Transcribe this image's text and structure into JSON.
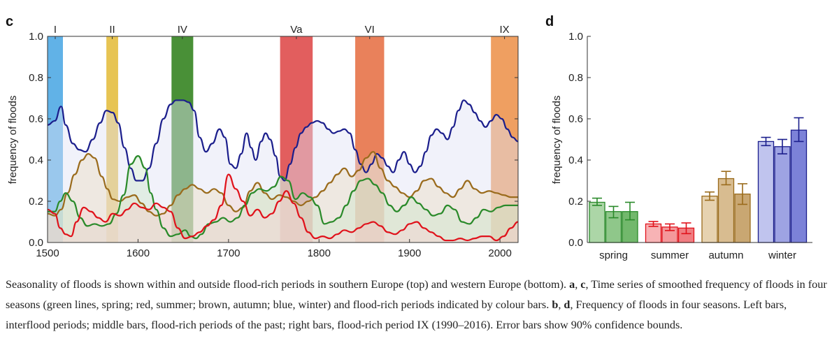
{
  "chart_data": [
    {
      "panel": "c",
      "type": "line",
      "ylabel": "frequency of floods",
      "xlim": [
        1500,
        2020
      ],
      "ylim": [
        0,
        1
      ],
      "xticks": [
        1500,
        1600,
        1700,
        1800,
        1900,
        2000
      ],
      "yticks": [
        "0.0",
        "0.2",
        "0.4",
        "0.6",
        "0.8",
        "1.0"
      ],
      "periods": [
        {
          "label": "I",
          "start": 1500,
          "end": 1517,
          "color": "#58aee6"
        },
        {
          "label": "II",
          "start": 1565,
          "end": 1578,
          "color": "#e6c14a"
        },
        {
          "label": "IV",
          "start": 1637,
          "end": 1661,
          "color": "#3f8a2c"
        },
        {
          "label": "Va",
          "start": 1757,
          "end": 1793,
          "color": "#e05555"
        },
        {
          "label": "VI",
          "start": 1840,
          "end": 1872,
          "color": "#e87a52"
        },
        {
          "label": "IX",
          "start": 1990,
          "end": 2020,
          "color": "#ee9a58"
        }
      ],
      "series": [
        {
          "color": "#1b1e8c",
          "fill": "#dfe2f5",
          "x": [
            1500,
            1508,
            1515,
            1520,
            1528,
            1535,
            1542,
            1550,
            1558,
            1565,
            1572,
            1578,
            1585,
            1592,
            1598,
            1605,
            1612,
            1620,
            1628,
            1636,
            1642,
            1650,
            1656,
            1662,
            1668,
            1675,
            1682,
            1690,
            1696,
            1702,
            1708,
            1714,
            1720,
            1725,
            1730,
            1736,
            1741,
            1746,
            1752,
            1757,
            1762,
            1768,
            1774,
            1780,
            1786,
            1792,
            1798,
            1804,
            1810,
            1816,
            1822,
            1828,
            1834,
            1840,
            1846,
            1852,
            1858,
            1864,
            1870,
            1876,
            1882,
            1888,
            1894,
            1900,
            1906,
            1912,
            1918,
            1924,
            1930,
            1936,
            1942,
            1948,
            1954,
            1960,
            1966,
            1972,
            1978,
            1984,
            1990,
            1996,
            2002,
            2008,
            2014,
            2020
          ],
          "values": [
            0.57,
            0.59,
            0.66,
            0.57,
            0.48,
            0.45,
            0.44,
            0.5,
            0.58,
            0.64,
            0.63,
            0.58,
            0.46,
            0.36,
            0.3,
            0.3,
            0.36,
            0.48,
            0.6,
            0.67,
            0.69,
            0.69,
            0.68,
            0.64,
            0.51,
            0.44,
            0.48,
            0.55,
            0.51,
            0.38,
            0.36,
            0.43,
            0.53,
            0.46,
            0.4,
            0.49,
            0.53,
            0.5,
            0.42,
            0.32,
            0.3,
            0.38,
            0.46,
            0.53,
            0.56,
            0.58,
            0.59,
            0.58,
            0.55,
            0.53,
            0.54,
            0.55,
            0.53,
            0.45,
            0.38,
            0.34,
            0.38,
            0.43,
            0.41,
            0.37,
            0.34,
            0.4,
            0.44,
            0.38,
            0.34,
            0.37,
            0.44,
            0.52,
            0.55,
            0.53,
            0.5,
            0.56,
            0.64,
            0.69,
            0.67,
            0.63,
            0.59,
            0.56,
            0.59,
            0.62,
            0.6,
            0.55,
            0.51,
            0.49
          ]
        },
        {
          "color": "#9a6b1c",
          "fill": "#ecdcc4",
          "x": [
            1500,
            1508,
            1515,
            1522,
            1530,
            1538,
            1545,
            1552,
            1560,
            1566,
            1572,
            1580,
            1588,
            1596,
            1604,
            1612,
            1620,
            1628,
            1636,
            1644,
            1652,
            1660,
            1668,
            1676,
            1684,
            1692,
            1700,
            1708,
            1716,
            1724,
            1732,
            1740,
            1748,
            1756,
            1764,
            1772,
            1780,
            1788,
            1796,
            1804,
            1812,
            1820,
            1828,
            1836,
            1844,
            1852,
            1860,
            1868,
            1876,
            1884,
            1892,
            1900,
            1908,
            1916,
            1924,
            1932,
            1940,
            1948,
            1956,
            1964,
            1972,
            1980,
            1988,
            1996,
            2004,
            2012,
            2020
          ],
          "values": [
            0.14,
            0.13,
            0.16,
            0.24,
            0.33,
            0.4,
            0.43,
            0.41,
            0.32,
            0.26,
            0.21,
            0.2,
            0.22,
            0.23,
            0.19,
            0.15,
            0.13,
            0.14,
            0.18,
            0.23,
            0.26,
            0.28,
            0.26,
            0.24,
            0.26,
            0.24,
            0.18,
            0.15,
            0.17,
            0.25,
            0.29,
            0.24,
            0.21,
            0.23,
            0.22,
            0.2,
            0.18,
            0.2,
            0.22,
            0.25,
            0.29,
            0.33,
            0.36,
            0.32,
            0.35,
            0.41,
            0.44,
            0.36,
            0.3,
            0.27,
            0.24,
            0.22,
            0.25,
            0.3,
            0.31,
            0.27,
            0.24,
            0.22,
            0.26,
            0.3,
            0.26,
            0.24,
            0.25,
            0.24,
            0.23,
            0.22,
            0.22
          ]
        },
        {
          "color": "#2a8a2a",
          "fill": "#cfe6cc",
          "x": [
            1500,
            1508,
            1514,
            1520,
            1528,
            1536,
            1544,
            1552,
            1560,
            1568,
            1576,
            1584,
            1592,
            1600,
            1608,
            1614,
            1620,
            1628,
            1636,
            1644,
            1652,
            1658,
            1664,
            1670,
            1678,
            1686,
            1694,
            1702,
            1710,
            1718,
            1726,
            1734,
            1742,
            1750,
            1758,
            1766,
            1774,
            1782,
            1790,
            1798,
            1806,
            1814,
            1822,
            1830,
            1838,
            1846,
            1854,
            1862,
            1870,
            1878,
            1886,
            1894,
            1902,
            1910,
            1918,
            1926,
            1934,
            1942,
            1950,
            1958,
            1966,
            1974,
            1982,
            1990,
            1998,
            2006,
            2014,
            2020
          ],
          "values": [
            0.15,
            0.15,
            0.2,
            0.24,
            0.2,
            0.12,
            0.08,
            0.09,
            0.08,
            0.09,
            0.14,
            0.23,
            0.38,
            0.42,
            0.36,
            0.24,
            0.16,
            0.07,
            0.03,
            0.04,
            0.06,
            0.03,
            0.02,
            0.04,
            0.09,
            0.1,
            0.12,
            0.1,
            0.12,
            0.18,
            0.24,
            0.26,
            0.25,
            0.27,
            0.32,
            0.3,
            0.21,
            0.24,
            0.22,
            0.18,
            0.09,
            0.1,
            0.12,
            0.18,
            0.25,
            0.3,
            0.31,
            0.28,
            0.24,
            0.18,
            0.15,
            0.18,
            0.22,
            0.19,
            0.16,
            0.13,
            0.14,
            0.18,
            0.16,
            0.1,
            0.09,
            0.12,
            0.16,
            0.15,
            0.17,
            0.18,
            0.18,
            0.18
          ]
        },
        {
          "color": "#e0121b",
          "fill": "#f5d2d2",
          "x": [
            1500,
            1508,
            1514,
            1520,
            1526,
            1532,
            1540,
            1548,
            1556,
            1564,
            1572,
            1580,
            1588,
            1596,
            1604,
            1612,
            1620,
            1628,
            1636,
            1644,
            1652,
            1660,
            1668,
            1676,
            1684,
            1692,
            1700,
            1708,
            1716,
            1724,
            1732,
            1740,
            1748,
            1756,
            1764,
            1772,
            1780,
            1788,
            1796,
            1804,
            1812,
            1820,
            1828,
            1836,
            1844,
            1852,
            1860,
            1868,
            1876,
            1884,
            1892,
            1900,
            1908,
            1916,
            1924,
            1932,
            1940,
            1948,
            1956,
            1964,
            1972,
            1980,
            1988,
            1996,
            2004,
            2012,
            2020
          ],
          "values": [
            0.16,
            0.14,
            0.07,
            0.04,
            0.03,
            0.1,
            0.17,
            0.15,
            0.12,
            0.1,
            0.14,
            0.13,
            0.16,
            0.19,
            0.17,
            0.16,
            0.19,
            0.17,
            0.15,
            0.07,
            0.02,
            0.03,
            0.05,
            0.08,
            0.11,
            0.18,
            0.33,
            0.26,
            0.2,
            0.13,
            0.16,
            0.12,
            0.14,
            0.2,
            0.25,
            0.19,
            0.12,
            0.05,
            0.02,
            0.03,
            0.02,
            0.04,
            0.06,
            0.05,
            0.07,
            0.09,
            0.1,
            0.08,
            0.05,
            0.04,
            0.06,
            0.09,
            0.1,
            0.07,
            0.05,
            0.03,
            0.01,
            0.01,
            0.02,
            0.01,
            0.02,
            0.03,
            0.03,
            0.01,
            0.03,
            0.07,
            0.1
          ]
        }
      ],
      "period_label_rows": "top"
    },
    {
      "panel": "d",
      "type": "bar",
      "ylabel": "frequency of floods",
      "categories": [
        "spring",
        "summer",
        "autumn",
        "winter"
      ],
      "ylim": [
        0,
        1
      ],
      "yticks": [
        "0.0",
        "0.2",
        "0.4",
        "0.6",
        "0.8",
        "1.0"
      ],
      "error_bars": true,
      "groups": [
        {
          "color": "#2a8a2a",
          "fills": [
            "#acd6a7",
            "#8fc78a",
            "#72b86c"
          ],
          "values": [
            0.195,
            0.15,
            0.15
          ],
          "err_low": [
            0.18,
            0.12,
            0.11
          ],
          "err_high": [
            0.215,
            0.175,
            0.195
          ]
        },
        {
          "color": "#e0121b",
          "fills": [
            "#f7b3b5",
            "#f4989b",
            "#f07d81"
          ],
          "values": [
            0.09,
            0.075,
            0.07
          ],
          "err_low": [
            0.078,
            0.058,
            0.043
          ],
          "err_high": [
            0.102,
            0.09,
            0.095
          ]
        },
        {
          "color": "#9a6b1c",
          "fills": [
            "#e6d2b0",
            "#d8bc90",
            "#c9a772"
          ],
          "values": [
            0.225,
            0.31,
            0.235
          ],
          "err_low": [
            0.205,
            0.28,
            0.185
          ],
          "err_high": [
            0.245,
            0.345,
            0.285
          ]
        },
        {
          "color": "#1b1e8c",
          "fills": [
            "#c0c4ee",
            "#9ea3e3",
            "#7c82d8"
          ],
          "values": [
            0.49,
            0.465,
            0.545
          ],
          "err_low": [
            0.47,
            0.43,
            0.49
          ],
          "err_high": [
            0.51,
            0.5,
            0.605
          ]
        }
      ]
    }
  ],
  "caption": {
    "p1": "Seasonality of floods is shown within and outside flood-rich periods in southern Europe (top) and western Europe (bottom). ",
    "b1": "a",
    "s1": ", ",
    "b2": "c",
    "p2": ", Time series of smoothed frequency of floods in four seasons (green lines, spring; red, summer; brown, autumn; blue, winter) and flood-rich periods indicated by colour bars. ",
    "b3": "b",
    "s2": ", ",
    "b4": "d",
    "p3": ", Frequency of floods in four seasons. Left bars, interflood periods; middle bars, flood-rich periods of the past; right bars, flood-rich period IX (1990–2016). Error bars show 90% confidence bounds."
  }
}
